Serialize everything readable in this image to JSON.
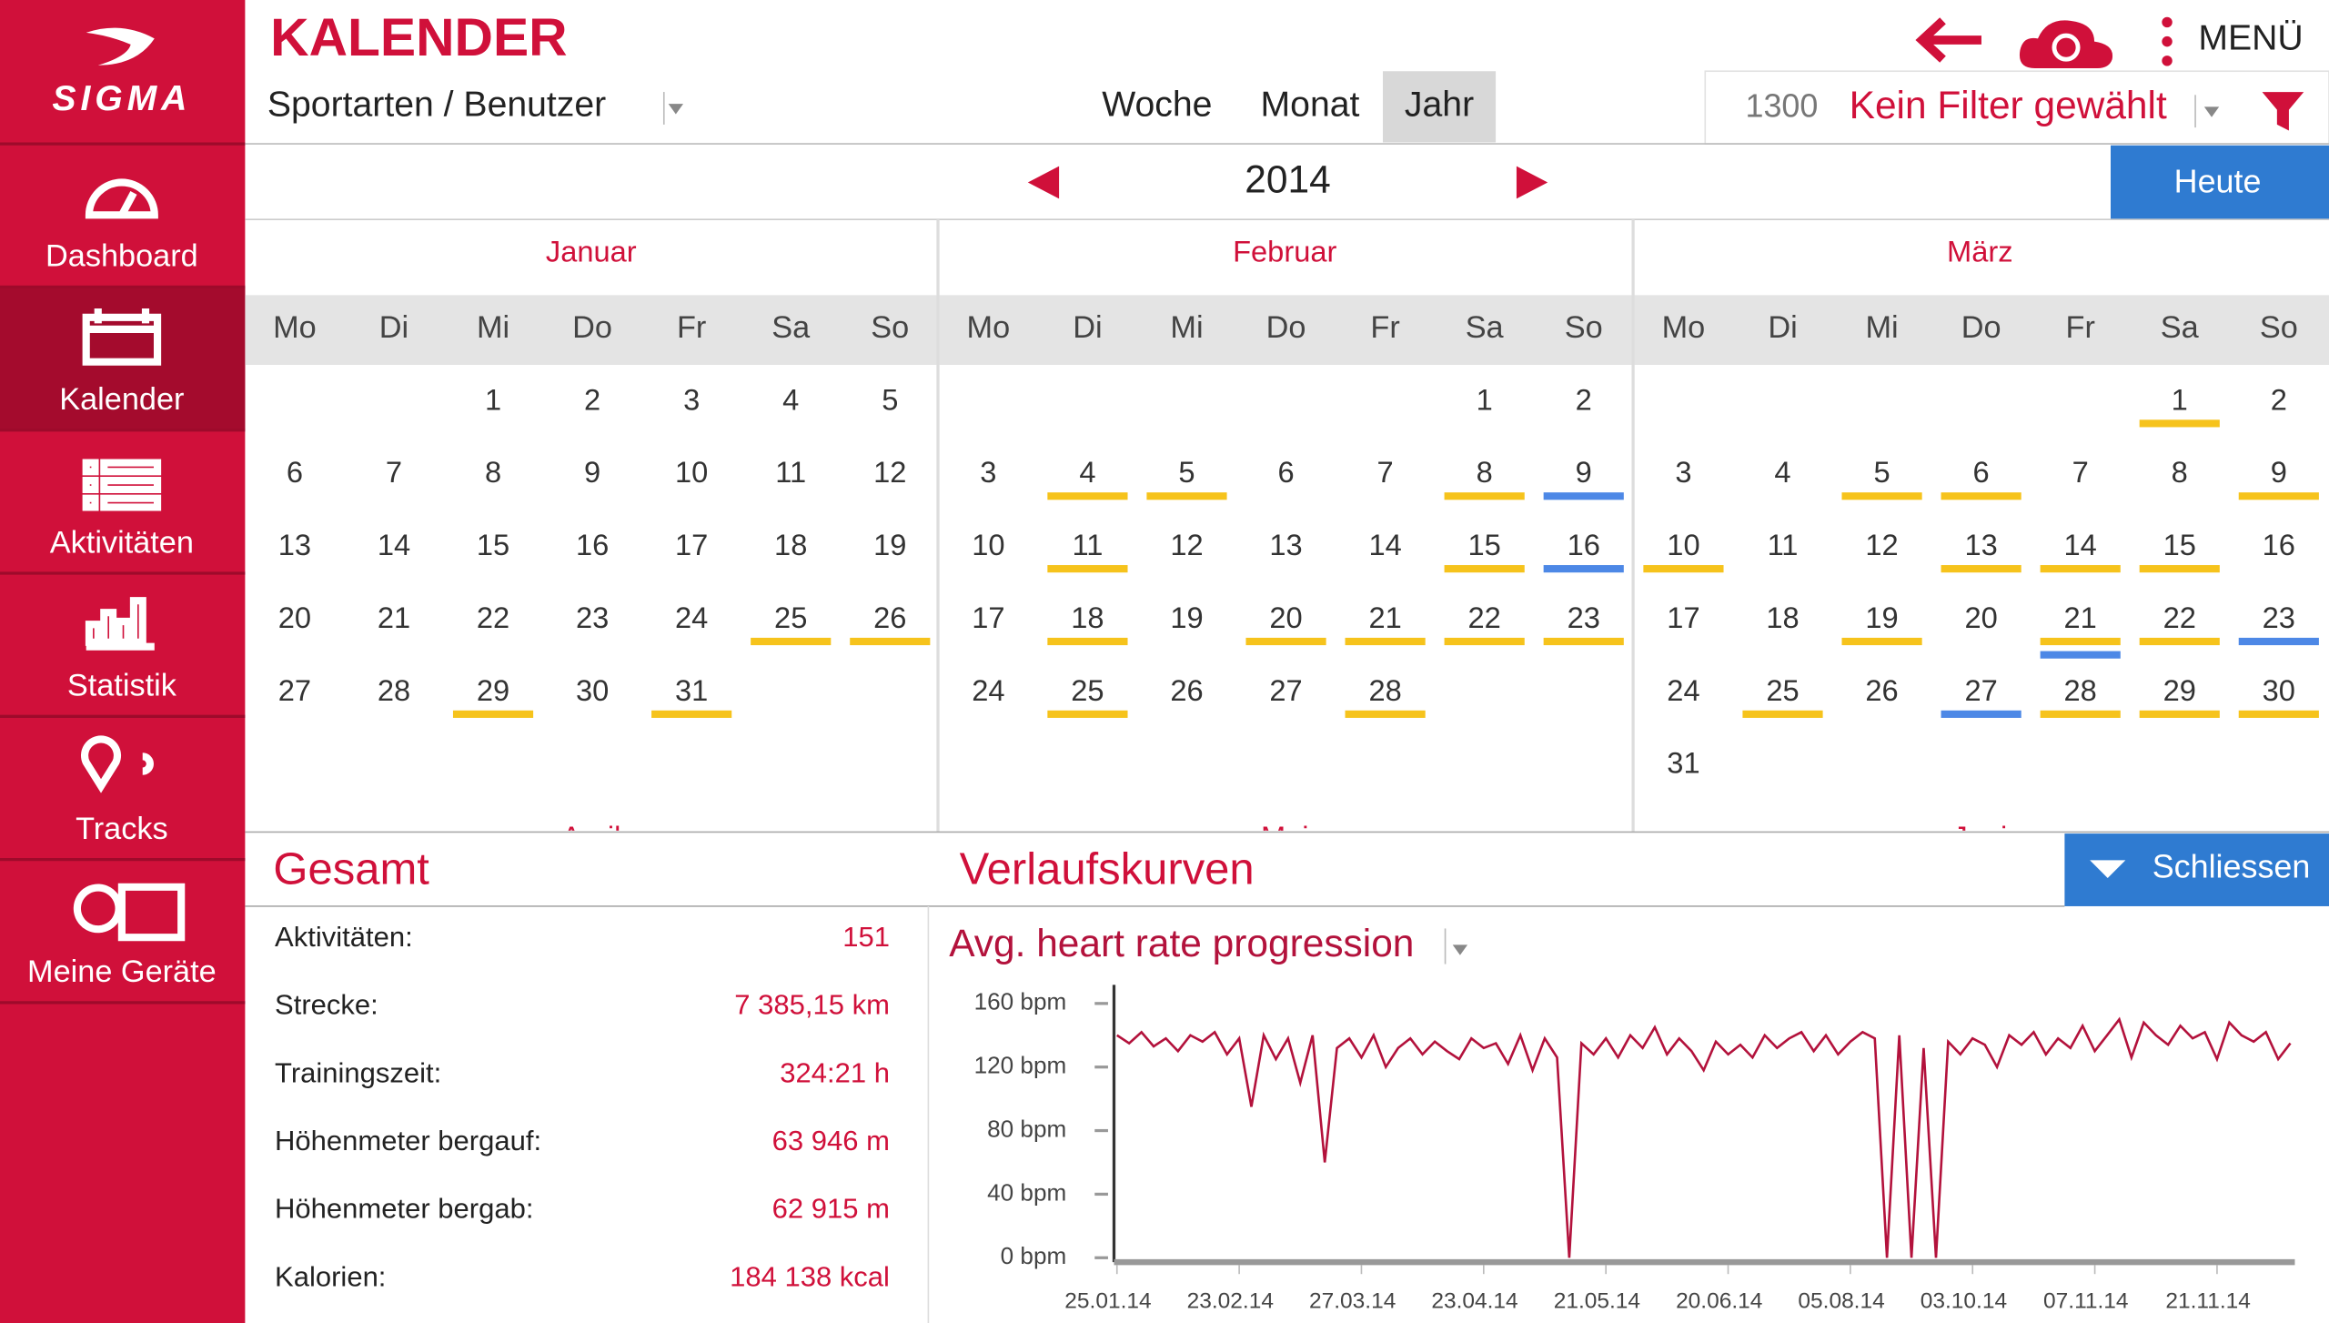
{
  "sidebar": {
    "brand": "SIGMA",
    "nav": [
      "Dashboard",
      "Kalender",
      "Aktivitäten",
      "Statistik",
      "Tracks",
      "Meine Geräte"
    ],
    "active_index": 1
  },
  "header": {
    "title": "KALENDER",
    "filter_left": "Sportarten / Benutzer",
    "views": [
      "Woche",
      "Monat",
      "Jahr"
    ],
    "active_view_index": 2,
    "count": 1300,
    "filter": "Kein Filter gewählt",
    "menu": "MENÜ"
  },
  "year_nav": {
    "year": 2014,
    "today": "Heute"
  },
  "calendar": {
    "weekdays": [
      "Mo",
      "Di",
      "Mi",
      "Do",
      "Fr",
      "Sa",
      "So"
    ],
    "colors": {
      "yellow": "#f6c31c",
      "blue": "#4d88e6"
    },
    "months": [
      {
        "name": "Januar",
        "weeks": [
          [
            null,
            null,
            1,
            2,
            3,
            4,
            5
          ],
          [
            6,
            7,
            8,
            9,
            10,
            11,
            12
          ],
          [
            13,
            14,
            15,
            16,
            17,
            18,
            19
          ],
          [
            20,
            21,
            22,
            23,
            24,
            25,
            26
          ],
          [
            27,
            28,
            29,
            30,
            31,
            null,
            null
          ]
        ],
        "marks": [
          {
            "day": 25,
            "color": "yellow"
          },
          {
            "day": 26,
            "color": "yellow"
          },
          {
            "day": 29,
            "color": "yellow"
          },
          {
            "day": 31,
            "color": "yellow"
          }
        ]
      },
      {
        "name": "Februar",
        "weeks": [
          [
            null,
            null,
            null,
            null,
            null,
            1,
            2
          ],
          [
            3,
            4,
            5,
            6,
            7,
            8,
            9
          ],
          [
            10,
            11,
            12,
            13,
            14,
            15,
            16
          ],
          [
            17,
            18,
            19,
            20,
            21,
            22,
            23
          ],
          [
            24,
            25,
            26,
            27,
            28,
            null,
            null
          ]
        ],
        "marks": [
          {
            "day": 4,
            "color": "yellow"
          },
          {
            "day": 5,
            "color": "yellow"
          },
          {
            "day": 8,
            "color": "yellow"
          },
          {
            "day": 9,
            "color": "blue"
          },
          {
            "day": 11,
            "color": "yellow"
          },
          {
            "day": 15,
            "color": "yellow"
          },
          {
            "day": 16,
            "color": "blue"
          },
          {
            "day": 18,
            "color": "yellow"
          },
          {
            "day": 20,
            "color": "yellow"
          },
          {
            "day": 21,
            "color": "yellow"
          },
          {
            "day": 22,
            "color": "yellow"
          },
          {
            "day": 23,
            "color": "yellow"
          },
          {
            "day": 25,
            "color": "yellow"
          },
          {
            "day": 28,
            "color": "yellow"
          }
        ]
      },
      {
        "name": "März",
        "weeks": [
          [
            null,
            null,
            null,
            null,
            null,
            1,
            2
          ],
          [
            3,
            4,
            5,
            6,
            7,
            8,
            9
          ],
          [
            10,
            11,
            12,
            13,
            14,
            15,
            16
          ],
          [
            17,
            18,
            19,
            20,
            21,
            22,
            23
          ],
          [
            24,
            25,
            26,
            27,
            28,
            29,
            30
          ],
          [
            31,
            null,
            null,
            null,
            null,
            null,
            null
          ]
        ],
        "marks": [
          {
            "day": 1,
            "color": "yellow"
          },
          {
            "day": 5,
            "color": "yellow"
          },
          {
            "day": 6,
            "color": "yellow"
          },
          {
            "day": 9,
            "color": "yellow"
          },
          {
            "day": 10,
            "color": "yellow"
          },
          {
            "day": 13,
            "color": "yellow"
          },
          {
            "day": 14,
            "color": "yellow"
          },
          {
            "day": 15,
            "color": "yellow"
          },
          {
            "day": 19,
            "color": "yellow"
          },
          {
            "day": 21,
            "color": "yellow"
          },
          {
            "day": 21,
            "color": "blue"
          },
          {
            "day": 22,
            "color": "yellow"
          },
          {
            "day": 23,
            "color": "blue"
          },
          {
            "day": 25,
            "color": "yellow"
          },
          {
            "day": 27,
            "color": "blue"
          },
          {
            "day": 28,
            "color": "yellow"
          },
          {
            "day": 29,
            "color": "yellow"
          },
          {
            "day": 30,
            "color": "yellow"
          }
        ]
      }
    ],
    "next_months": [
      "April",
      "Mai",
      "Juni"
    ]
  },
  "summary": {
    "title": "Gesamt",
    "rows": [
      {
        "label": "Aktivitäten:",
        "value": "151"
      },
      {
        "label": "Strecke:",
        "value": "7 385,15 km"
      },
      {
        "label": "Trainingszeit:",
        "value": "324:21 h"
      },
      {
        "label": "Höhenmeter bergauf:",
        "value": "63 946 m"
      },
      {
        "label": "Höhenmeter bergab:",
        "value": "62 915 m"
      },
      {
        "label": "Kalorien:",
        "value": "184 138 kcal"
      }
    ]
  },
  "curves": {
    "title": "Verlaufskurven",
    "close": "Schliessen",
    "chart_data": {
      "type": "line",
      "title": "Avg. heart rate progression",
      "color": "#b3123c",
      "ylim": [
        0,
        168
      ],
      "yticks": [
        {
          "value": 0,
          "label": "0 bpm"
        },
        {
          "value": 40,
          "label": "40 bpm"
        },
        {
          "value": 80,
          "label": "80 bpm"
        },
        {
          "value": 120,
          "label": "120 bpm"
        },
        {
          "value": 160,
          "label": "160 bpm"
        }
      ],
      "xlim": [
        0,
        96
      ],
      "xticks": [
        {
          "value": 0,
          "label": "25.01.14"
        },
        {
          "value": 10,
          "label": "23.02.14"
        },
        {
          "value": 20,
          "label": "27.03.14"
        },
        {
          "value": 30,
          "label": "23.04.14"
        },
        {
          "value": 40,
          "label": "21.05.14"
        },
        {
          "value": 50,
          "label": "20.06.14"
        },
        {
          "value": 60,
          "label": "05.08.14"
        },
        {
          "value": 70,
          "label": "03.10.14"
        },
        {
          "value": 80,
          "label": "07.11.14"
        },
        {
          "value": 90,
          "label": "21.11.14"
        }
      ],
      "values": [
        140,
        135,
        142,
        133,
        138,
        130,
        140,
        136,
        142,
        128,
        138,
        95,
        140,
        125,
        138,
        110,
        140,
        60,
        132,
        138,
        126,
        140,
        120,
        132,
        138,
        128,
        136,
        130,
        125,
        138,
        132,
        135,
        122,
        140,
        118,
        138,
        126,
        0,
        135,
        128,
        138,
        126,
        140,
        132,
        145,
        128,
        138,
        130,
        118,
        136,
        128,
        134,
        126,
        140,
        132,
        138,
        142,
        130,
        140,
        128,
        136,
        142,
        138,
        0,
        140,
        0,
        132,
        0,
        136,
        128,
        138,
        134,
        120,
        140,
        134,
        142,
        128,
        138,
        132,
        146,
        130,
        140,
        150,
        126,
        148,
        140,
        134,
        146,
        138,
        142,
        125,
        148,
        140,
        136,
        142,
        125,
        135
      ]
    }
  }
}
